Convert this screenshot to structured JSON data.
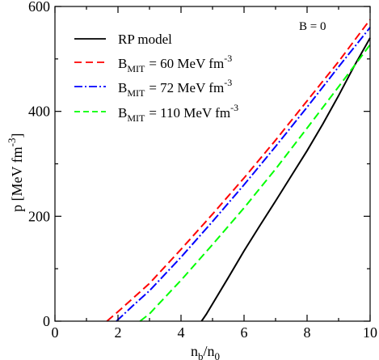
{
  "chart_data": {
    "type": "line",
    "title": "",
    "xlabel": "n_b/n_0",
    "ylabel": "p [MeV fm^-3]",
    "xlim": [
      0,
      10
    ],
    "ylim": [
      0,
      600
    ],
    "xticks": [
      0,
      2,
      4,
      6,
      8,
      10
    ],
    "yticks": [
      0,
      200,
      400,
      600
    ],
    "grid": false,
    "legend_position": "top-left",
    "annotation": "B = 0",
    "series": [
      {
        "name": "RP model",
        "color": "#000000",
        "dash": "solid",
        "points": [
          [
            4.65,
            0
          ],
          [
            4.8,
            13
          ],
          [
            5.0,
            33
          ],
          [
            5.5,
            83
          ],
          [
            6.0,
            134
          ],
          [
            6.5,
            182
          ],
          [
            7.0,
            229
          ],
          [
            7.5,
            277
          ],
          [
            8.0,
            325
          ],
          [
            8.5,
            376
          ],
          [
            9.0,
            430
          ],
          [
            9.5,
            487
          ],
          [
            10.0,
            540
          ]
        ]
      },
      {
        "name": "B_MIT = 60 MeV fm^-3",
        "color": "#ff0000",
        "dash": "dashed",
        "points": [
          [
            1.65,
            0
          ],
          [
            2.0,
            18
          ],
          [
            3.0,
            72
          ],
          [
            4.0,
            137
          ],
          [
            5.0,
            204
          ],
          [
            6.0,
            273
          ],
          [
            7.0,
            345
          ],
          [
            8.0,
            420
          ],
          [
            9.0,
            495
          ],
          [
            10.0,
            575
          ]
        ]
      },
      {
        "name": "B_MIT = 72 MeV fm^-3",
        "color": "#0000ff",
        "dash": "dashdot",
        "points": [
          [
            1.95,
            0
          ],
          [
            2.5,
            31
          ],
          [
            3.0,
            58
          ],
          [
            4.0,
            122
          ],
          [
            5.0,
            190
          ],
          [
            6.0,
            260
          ],
          [
            7.0,
            333
          ],
          [
            8.0,
            408
          ],
          [
            9.0,
            485
          ],
          [
            10.0,
            560
          ]
        ]
      },
      {
        "name": "B_MIT = 110 MeV fm^-3",
        "color": "#00ff00",
        "dash": "dashed",
        "points": [
          [
            2.7,
            0
          ],
          [
            3.0,
            14
          ],
          [
            4.0,
            78
          ],
          [
            5.0,
            146
          ],
          [
            6.0,
            216
          ],
          [
            7.0,
            290
          ],
          [
            8.0,
            368
          ],
          [
            9.0,
            447
          ],
          [
            10.0,
            527
          ]
        ]
      }
    ]
  },
  "legend": {
    "rp": "RP model",
    "b60_value": "= 60 MeV fm",
    "b72_value": "= 72 MeV fm",
    "b110_value": "= 110 MeV fm",
    "b_sym": "B",
    "b_sub": "MIT",
    "exp": "-3"
  },
  "labels": {
    "annotation": "B = 0",
    "x_main": "n",
    "x_sub1": "b",
    "x_slash": "/n",
    "x_sub2": "0",
    "y_main": "p [MeV fm",
    "y_sup": "-3",
    "y_close": "]"
  }
}
